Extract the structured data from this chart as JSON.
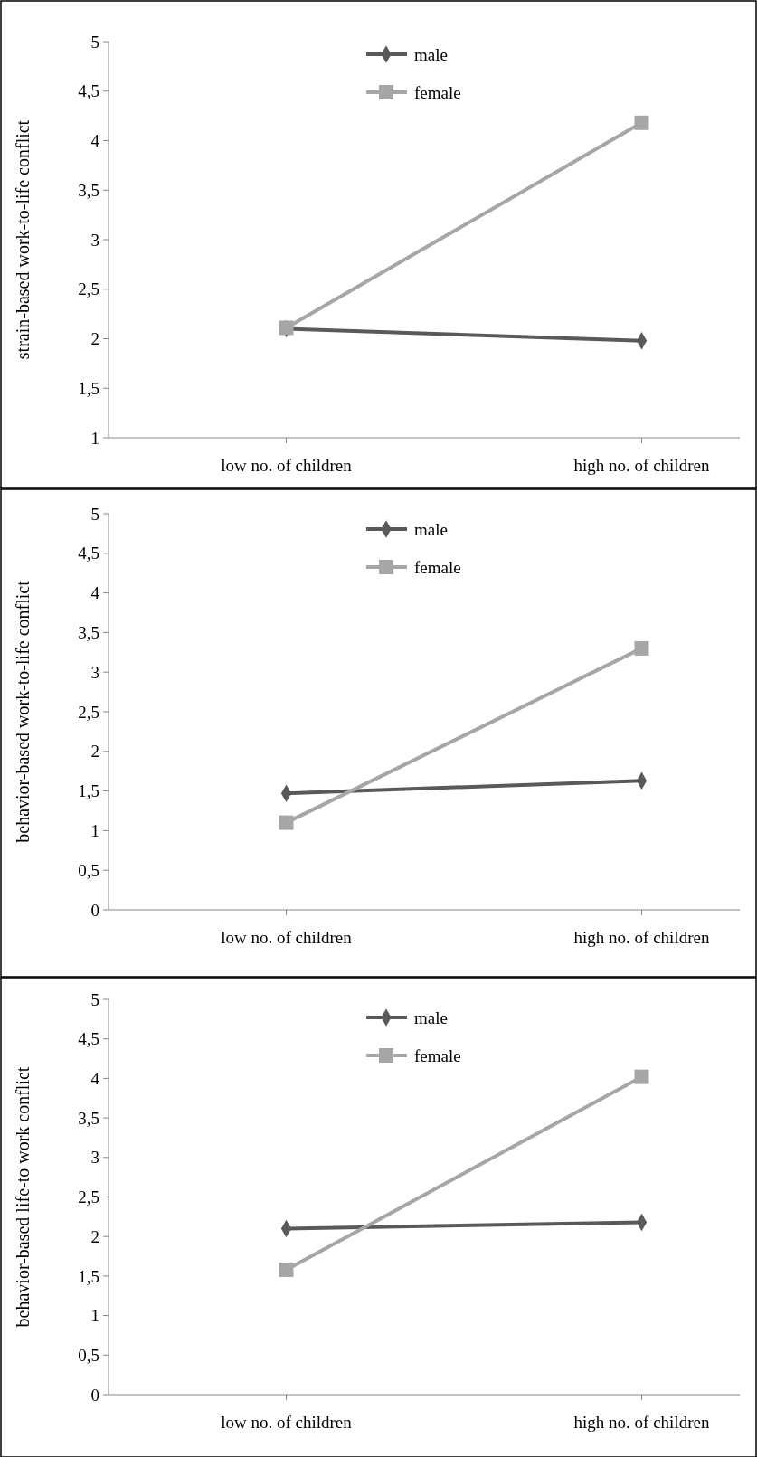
{
  "chart_data": [
    {
      "type": "line",
      "ylabel": "strain-based work-to-life conflict",
      "categories": [
        "low no. of children",
        "high no. of children"
      ],
      "ylim": [
        1,
        5
      ],
      "yticks": [
        1,
        {
          "value": 1.5,
          "label": "1,5"
        },
        2,
        {
          "value": 2.5,
          "label": "2,5"
        },
        3,
        {
          "value": 3.5,
          "label": "3,5"
        },
        4,
        {
          "value": 4.5,
          "label": "4,5"
        },
        5
      ],
      "legend": "top",
      "grid": false,
      "series": [
        {
          "name": "male",
          "color": "#595959",
          "marker": "diamond",
          "values": [
            2.1,
            1.98
          ]
        },
        {
          "name": "female",
          "color": "#a6a6a6",
          "marker": "square",
          "values": [
            2.11,
            4.18
          ]
        }
      ]
    },
    {
      "type": "line",
      "ylabel": "behavior-based work-to-life conflict",
      "categories": [
        "low no. of children",
        "high no. of children"
      ],
      "ylim": [
        0,
        5
      ],
      "yticks": [
        0,
        {
          "value": 0.5,
          "label": "0,5"
        },
        1,
        {
          "value": 1.5,
          "label": "1,5"
        },
        2,
        {
          "value": 2.5,
          "label": "2,5"
        },
        3,
        {
          "value": 3.5,
          "label": "3,5"
        },
        4,
        {
          "value": 4.5,
          "label": "4,5"
        },
        5
      ],
      "legend": "top",
      "grid": false,
      "series": [
        {
          "name": "male",
          "color": "#595959",
          "marker": "diamond",
          "values": [
            1.47,
            1.63
          ]
        },
        {
          "name": "female",
          "color": "#a6a6a6",
          "marker": "square",
          "values": [
            1.1,
            3.3
          ]
        }
      ]
    },
    {
      "type": "line",
      "ylabel": "behavior-based life-to work conflict",
      "categories": [
        "low no. of children",
        "high no. of children"
      ],
      "ylim": [
        0,
        5
      ],
      "yticks": [
        0,
        {
          "value": 0.5,
          "label": "0,5"
        },
        1,
        {
          "value": 1.5,
          "label": "1,5"
        },
        2,
        {
          "value": 2.5,
          "label": "2,5"
        },
        3,
        {
          "value": 3.5,
          "label": "3,5"
        },
        4,
        {
          "value": 4.5,
          "label": "4,5"
        },
        5
      ],
      "legend": "top",
      "grid": false,
      "series": [
        {
          "name": "male",
          "color": "#595959",
          "marker": "diamond",
          "values": [
            2.1,
            2.18
          ]
        },
        {
          "name": "female",
          "color": "#a6a6a6",
          "marker": "square",
          "values": [
            1.58,
            4.02
          ]
        }
      ]
    }
  ]
}
